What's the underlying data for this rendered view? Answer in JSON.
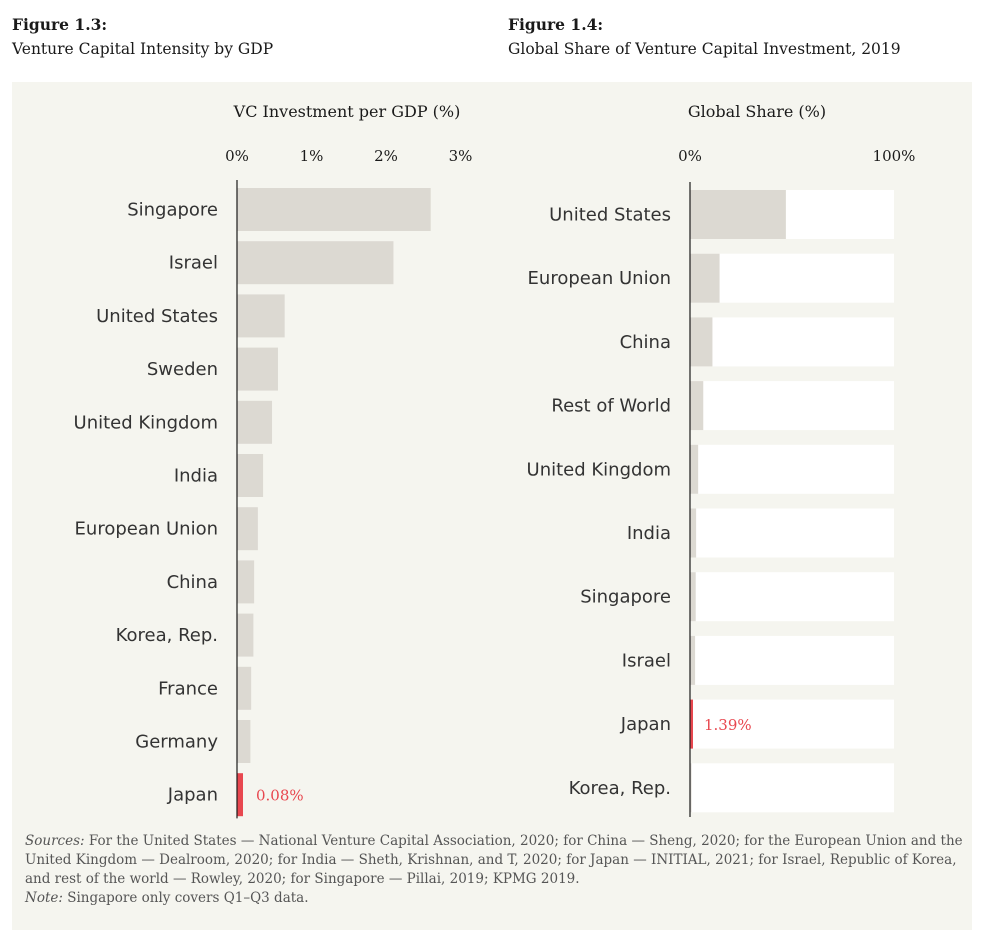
{
  "figures": [
    {
      "number": "Figure 1.3:",
      "title": "Venture Capital Intensity by GDP"
    },
    {
      "number": "Figure 1.4:",
      "title": "Global Share of Venture Capital Investment, 2019"
    }
  ],
  "colors": {
    "bar": "#dcd9d2",
    "highlight": "#e8474f",
    "track": "#ffffff",
    "panel": "#f5f5ef",
    "axis": "#1a1a1a"
  },
  "chart_data": [
    {
      "type": "bar",
      "orientation": "horizontal",
      "title": "",
      "xlabel": "VC Investment per GDP (%)",
      "ticks": [
        "0%",
        "1%",
        "2%",
        "3%"
      ],
      "xlim": [
        0,
        3
      ],
      "categories": [
        "Singapore",
        "Israel",
        "United States",
        "Sweden",
        "United Kingdom",
        "India",
        "European Union",
        "China",
        "Korea, Rep.",
        "France",
        "Germany",
        "Japan"
      ],
      "values": [
        2.6,
        2.1,
        0.64,
        0.55,
        0.47,
        0.35,
        0.28,
        0.23,
        0.22,
        0.19,
        0.18,
        0.08
      ],
      "highlight": {
        "category": "Japan",
        "label": "0.08%"
      },
      "grid": false
    },
    {
      "type": "bar",
      "orientation": "horizontal",
      "title": "",
      "xlabel": "Global Share (%)",
      "ticks": [
        "0%",
        "100%"
      ],
      "xlim": [
        0,
        100
      ],
      "categories": [
        "United States",
        "European Union",
        "China",
        "Rest of World",
        "United Kingdom",
        "India",
        "Singapore",
        "Israel",
        "Japan",
        "Korea, Rep."
      ],
      "values": [
        47,
        14.5,
        11,
        6.5,
        4,
        3,
        2.8,
        2.5,
        1.39,
        0.6
      ],
      "highlight": {
        "category": "Japan",
        "label": "1.39%"
      },
      "grid": false
    }
  ],
  "notes": {
    "sources_label": "Sources:",
    "sources_text": "For the United States — National Venture Capital Association, 2020; for China — Sheng, 2020; for the European Union and the United Kingdom — Dealroom, 2020; for India — Sheth, Krishnan, and T, 2020; for Japan — INITIAL, 2021; for Israel, Republic of Korea, and rest of the world — Rowley, 2020; for Singapore — Pillai, 2019; KPMG 2019.",
    "note_label": "Note:",
    "note_text": "Singapore only covers Q1–Q3 data."
  }
}
